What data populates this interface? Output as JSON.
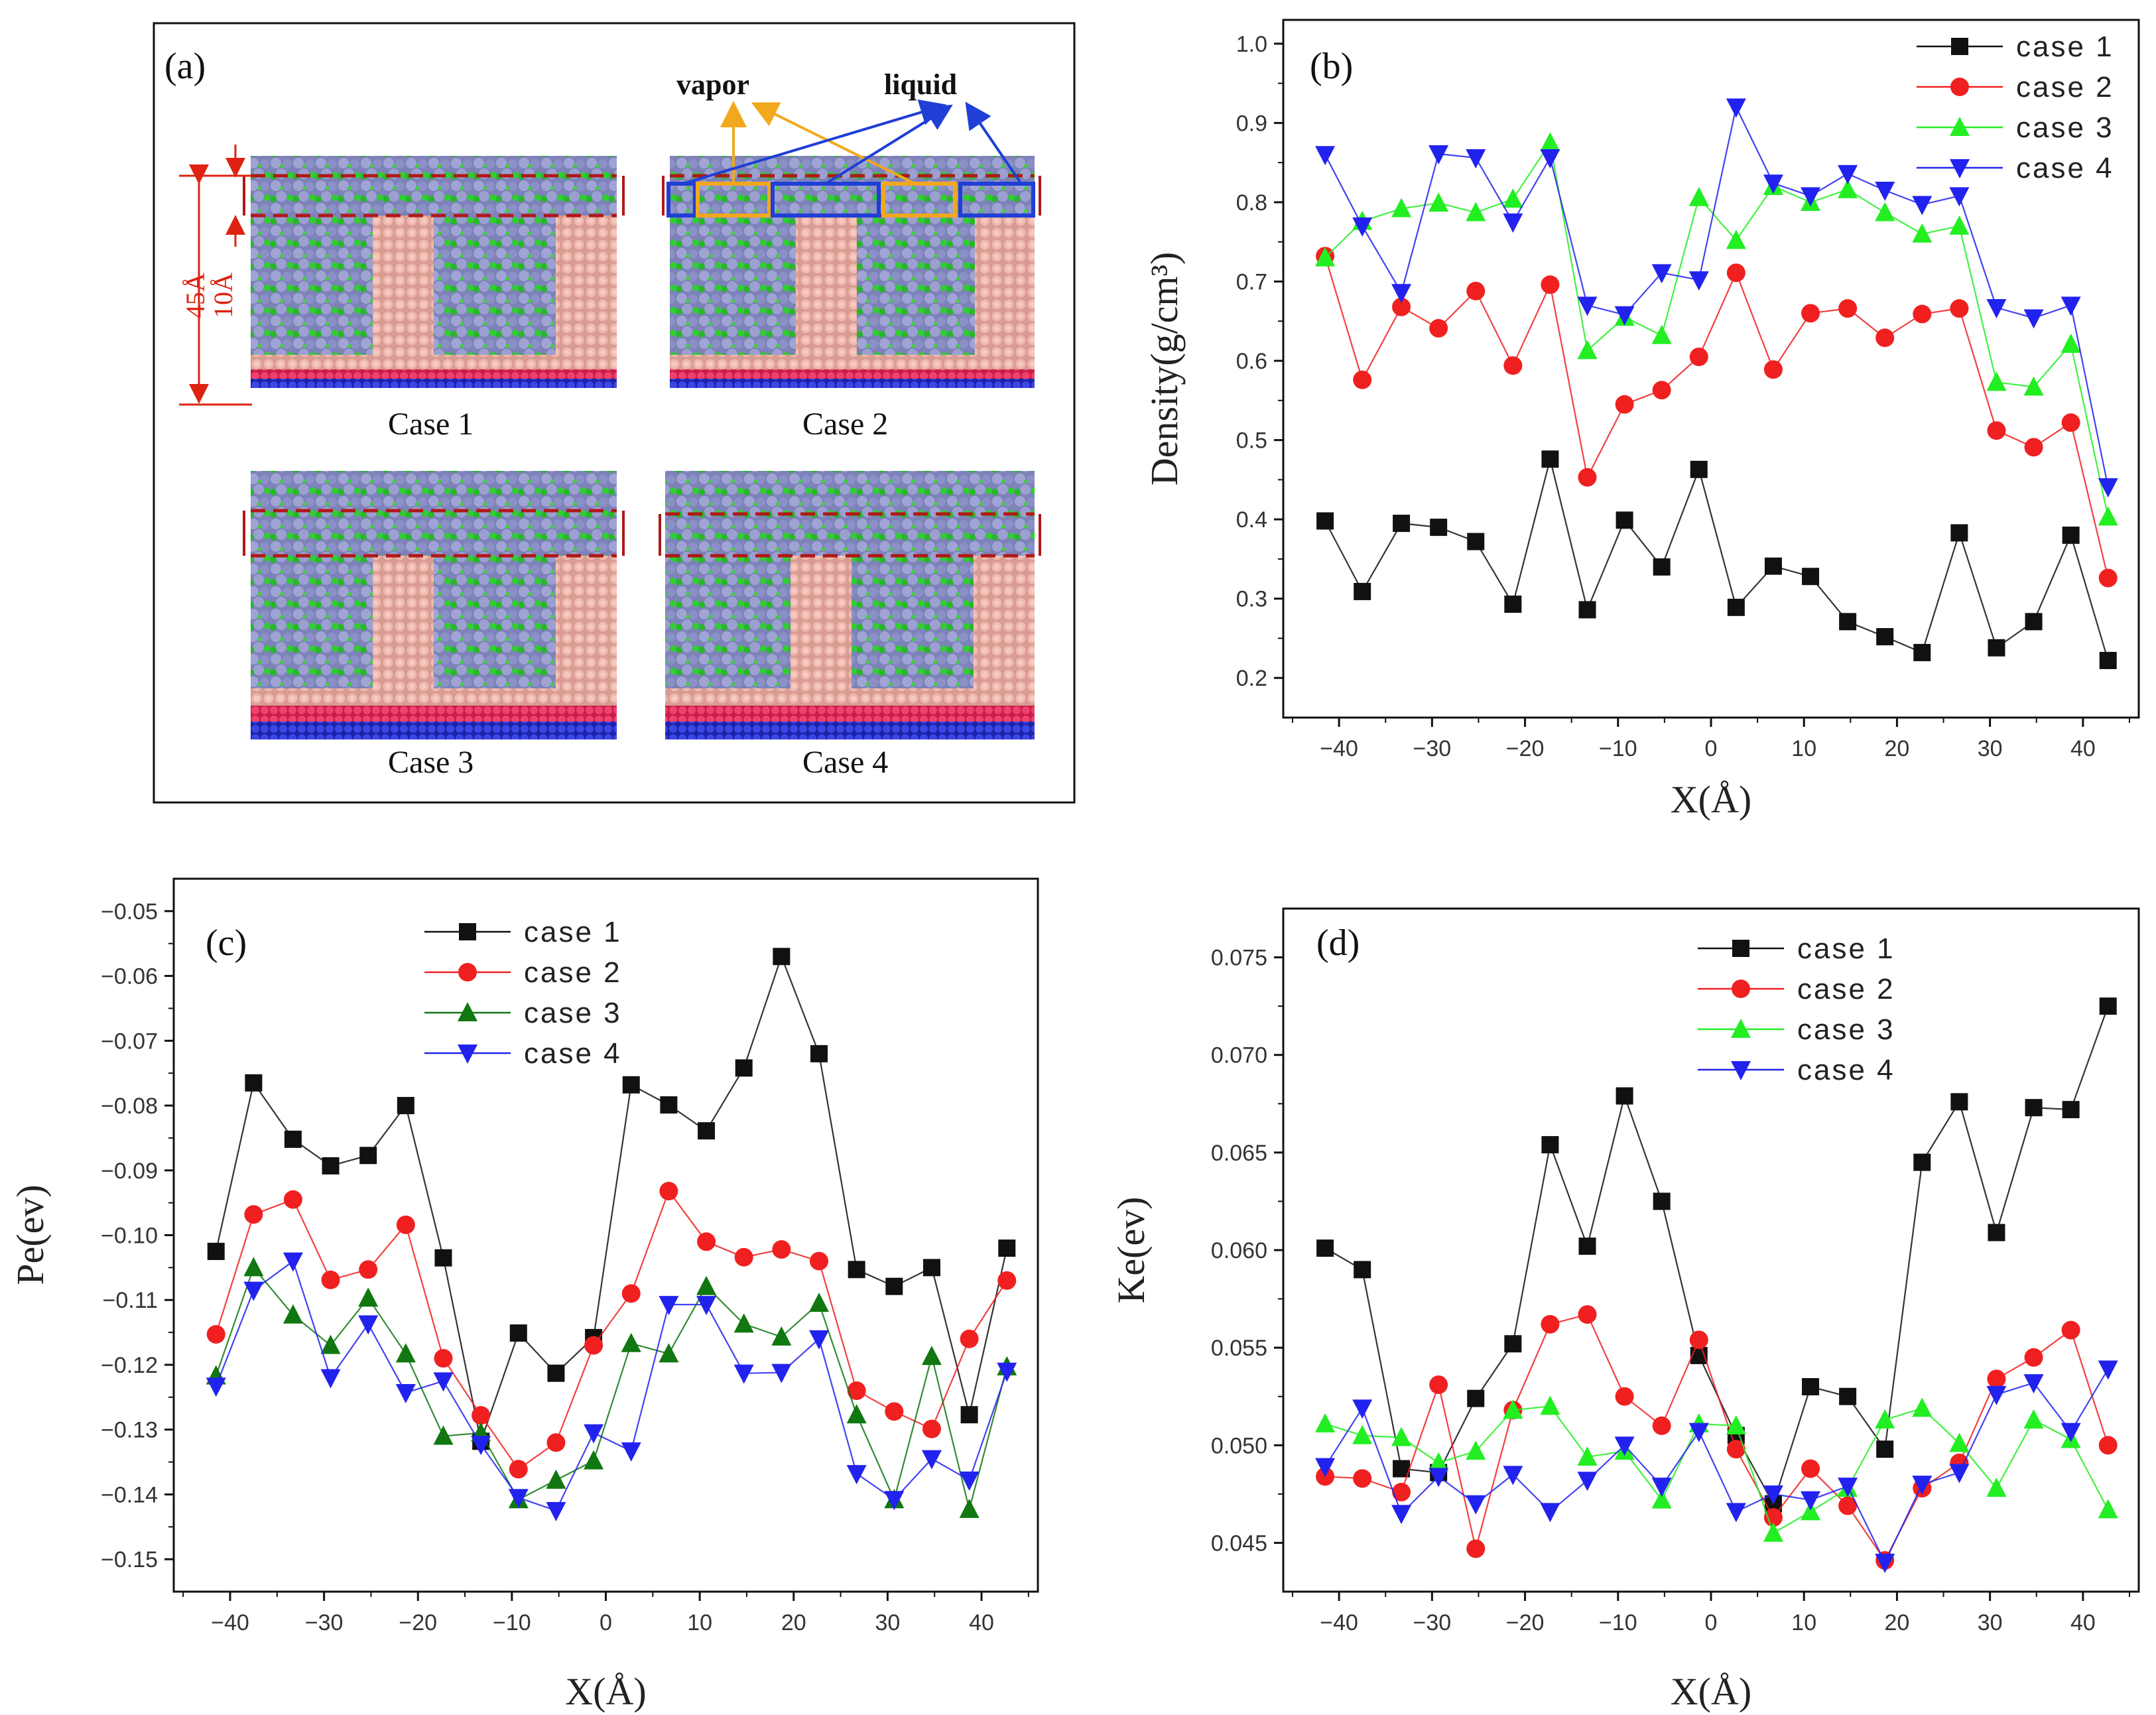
{
  "panel_a": {
    "label": "(a)",
    "cases": [
      "Case 1",
      "Case 2",
      "Case 3",
      "Case 4"
    ],
    "annotations": {
      "vapor": "vapor",
      "liquid": "liquid",
      "dim_45": "45Å",
      "dim_10": "10Å"
    },
    "colors": {
      "fluid_a": "#8f93c4",
      "fluid_b": "#2fbf2f",
      "wall": "#e7a9a0",
      "base_red": "#e0305a",
      "base_blue": "#2f3ad0",
      "dashed": "#b01818",
      "vapor_box": "#f2a81d",
      "liquid_box": "#1f3fd6"
    }
  },
  "chart_data": [
    {
      "type": "line",
      "panel": "(b)",
      "xlabel": "X(Å)",
      "ylabel": "Density(g/cm³)",
      "xlim": [
        -46,
        46
      ],
      "ylim": [
        0.15,
        1.03
      ],
      "xticks": [
        -40,
        -30,
        -20,
        -10,
        0,
        10,
        20,
        30,
        40
      ],
      "yticks": [
        0.2,
        0.3,
        0.4,
        0.5,
        0.6,
        0.7,
        0.8,
        0.9,
        1.0
      ],
      "tick_labels_x": [
        "−40",
        "−30",
        "−20",
        "−10",
        "0",
        "10",
        "20",
        "30",
        "40"
      ],
      "tick_labels_y": [
        "0.2",
        "0.3",
        "0.4",
        "0.5",
        "0.6",
        "0.7",
        "0.8",
        "0.9",
        "1.0"
      ],
      "legend_position": "top-right",
      "x": [
        -41.5,
        -37.5,
        -33.3,
        -29.3,
        -25.3,
        -21.3,
        -17.3,
        -13.3,
        -9.3,
        -5.3,
        -1.3,
        2.7,
        6.7,
        10.7,
        14.7,
        18.7,
        22.7,
        26.7,
        30.7,
        34.7,
        38.7,
        42.7
      ],
      "series": [
        {
          "name": "case 1",
          "color": "#111111",
          "marker": "square",
          "values": [
            0.398,
            0.309,
            0.395,
            0.39,
            0.372,
            0.293,
            0.476,
            0.286,
            0.399,
            0.34,
            0.463,
            0.289,
            0.341,
            0.328,
            0.271,
            0.252,
            0.232,
            0.383,
            0.238,
            0.271,
            0.38,
            0.222
          ]
        },
        {
          "name": "case 2",
          "color": "#f02020",
          "marker": "circle",
          "values": [
            0.732,
            0.576,
            0.668,
            0.641,
            0.688,
            0.594,
            0.696,
            0.453,
            0.545,
            0.563,
            0.605,
            0.711,
            0.589,
            0.66,
            0.666,
            0.629,
            0.659,
            0.666,
            0.512,
            0.491,
            0.522,
            0.326
          ]
        },
        {
          "name": "case 3",
          "color": "#22ee22",
          "marker": "triangle-up",
          "values": [
            0.73,
            0.776,
            0.792,
            0.799,
            0.787,
            0.804,
            0.875,
            0.613,
            0.655,
            0.632,
            0.806,
            0.752,
            0.82,
            0.8,
            0.816,
            0.787,
            0.76,
            0.77,
            0.573,
            0.567,
            0.621,
            0.403
          ]
        },
        {
          "name": "case 4",
          "color": "#2222ee",
          "marker": "triangle-down",
          "values": [
            0.86,
            0.77,
            0.686,
            0.861,
            0.856,
            0.775,
            0.856,
            0.67,
            0.658,
            0.711,
            0.702,
            0.92,
            0.824,
            0.808,
            0.836,
            0.815,
            0.797,
            0.808,
            0.667,
            0.654,
            0.67,
            0.441
          ]
        }
      ]
    },
    {
      "type": "line",
      "panel": "(c)",
      "xlabel": "X(Å)",
      "ylabel": "Pe(ev)",
      "xlim": [
        -46,
        46
      ],
      "ylim": [
        -0.155,
        -0.045
      ],
      "xticks": [
        -40,
        -30,
        -20,
        -10,
        0,
        10,
        20,
        30,
        40
      ],
      "yticks": [
        -0.15,
        -0.14,
        -0.13,
        -0.12,
        -0.11,
        -0.1,
        -0.09,
        -0.08,
        -0.07,
        -0.06,
        -0.05
      ],
      "tick_labels_x": [
        "−40",
        "−30",
        "−20",
        "−10",
        "0",
        "10",
        "20",
        "30",
        "40"
      ],
      "tick_labels_y": [
        "−0.15",
        "−0.14",
        "−0.13",
        "−0.12",
        "−0.11",
        "−0.10",
        "−0.09",
        "−0.08",
        "−0.07",
        "−0.06",
        "−0.05"
      ],
      "legend_position": "top-left",
      "x": [
        -41.5,
        -37.5,
        -33.3,
        -29.3,
        -25.3,
        -21.3,
        -17.3,
        -13.3,
        -9.3,
        -5.3,
        -1.3,
        2.7,
        6.7,
        10.7,
        14.7,
        18.7,
        22.7,
        26.7,
        30.7,
        34.7,
        38.7,
        42.7
      ],
      "series": [
        {
          "name": "case 1",
          "color": "#111111",
          "marker": "square",
          "values": [
            -0.1025,
            -0.0765,
            -0.0852,
            -0.0893,
            -0.0877,
            -0.08,
            -0.1035,
            -0.1318,
            -0.1151,
            -0.1213,
            -0.1158,
            -0.0768,
            -0.0799,
            -0.0839,
            -0.0742,
            -0.057,
            -0.072,
            -0.1053,
            -0.1079,
            -0.105,
            -0.1277,
            -0.102
          ]
        },
        {
          "name": "case 2",
          "color": "#f02020",
          "marker": "circle",
          "values": [
            -0.1153,
            -0.0968,
            -0.0945,
            -0.1069,
            -0.1053,
            -0.0984,
            -0.119,
            -0.1278,
            -0.1361,
            -0.132,
            -0.117,
            -0.109,
            -0.0932,
            -0.101,
            -0.1034,
            -0.1022,
            -0.104,
            -0.124,
            -0.1272,
            -0.1299,
            -0.116,
            -0.107
          ]
        },
        {
          "name": "case 3",
          "color": "#117711",
          "marker": "triangle-up",
          "values": [
            -0.1217,
            -0.105,
            -0.1123,
            -0.117,
            -0.1097,
            -0.1183,
            -0.131,
            -0.1305,
            -0.1408,
            -0.1378,
            -0.1348,
            -0.1167,
            -0.1183,
            -0.1079,
            -0.1137,
            -0.1157,
            -0.1105,
            -0.1277,
            -0.1408,
            -0.1187,
            -0.1423,
            -0.1203
          ]
        },
        {
          "name": "case 4",
          "color": "#2222ee",
          "marker": "triangle-down",
          "values": [
            -0.1233,
            -0.1085,
            -0.104,
            -0.122,
            -0.1137,
            -0.1243,
            -0.1225,
            -0.1323,
            -0.1405,
            -0.1425,
            -0.1305,
            -0.1333,
            -0.1107,
            -0.1107,
            -0.1213,
            -0.1212,
            -0.116,
            -0.1368,
            -0.1408,
            -0.1345,
            -0.1378,
            -0.121
          ]
        }
      ]
    },
    {
      "type": "line",
      "panel": "(d)",
      "xlabel": "X(Å)",
      "ylabel": "Ke(ev)",
      "xlim": [
        -46,
        46
      ],
      "ylim": [
        0.0425,
        0.0775
      ],
      "xticks": [
        -40,
        -30,
        -20,
        -10,
        0,
        10,
        20,
        30,
        40
      ],
      "yticks": [
        0.045,
        0.05,
        0.055,
        0.06,
        0.065,
        0.07,
        0.075
      ],
      "tick_labels_x": [
        "−40",
        "−30",
        "−20",
        "−10",
        "0",
        "10",
        "20",
        "30",
        "40"
      ],
      "tick_labels_y": [
        "0.045",
        "0.050",
        "0.055",
        "0.060",
        "0.065",
        "0.070",
        "0.075"
      ],
      "legend_position": "top-center",
      "x": [
        -41.5,
        -37.5,
        -33.3,
        -29.3,
        -25.3,
        -21.3,
        -17.3,
        -13.3,
        -9.3,
        -5.3,
        -1.3,
        2.7,
        6.7,
        10.7,
        14.7,
        18.7,
        22.7,
        26.7,
        30.7,
        34.7,
        38.7,
        42.7
      ],
      "series": [
        {
          "name": "case 1",
          "color": "#111111",
          "marker": "square",
          "values": [
            0.0601,
            0.059,
            0.0488,
            0.0486,
            0.0524,
            0.0552,
            0.0654,
            0.0602,
            0.0679,
            0.0625,
            0.0546,
            0.0505,
            0.047,
            0.053,
            0.0525,
            0.0498,
            0.0645,
            0.0676,
            0.0609,
            0.0673,
            0.0672,
            0.0725
          ]
        },
        {
          "name": "case 2",
          "color": "#f02020",
          "marker": "circle",
          "values": [
            0.0484,
            0.0483,
            0.0476,
            0.0531,
            0.0447,
            0.0518,
            0.0562,
            0.0567,
            0.0525,
            0.051,
            0.0554,
            0.0498,
            0.0463,
            0.0488,
            0.0469,
            0.0441,
            0.0478,
            0.0491,
            0.0534,
            0.0545,
            0.0559,
            0.05
          ]
        },
        {
          "name": "case 3",
          "color": "#22ee22",
          "marker": "triangle-up",
          "values": [
            0.0511,
            0.0505,
            0.0504,
            0.0491,
            0.0497,
            0.0518,
            0.052,
            0.0494,
            0.0497,
            0.0472,
            0.0511,
            0.051,
            0.0455,
            0.0466,
            0.0478,
            0.0513,
            0.0519,
            0.0501,
            0.0478,
            0.0513,
            0.0503,
            0.0467
          ]
        },
        {
          "name": "case 4",
          "color": "#2222ee",
          "marker": "triangle-down",
          "values": [
            0.0489,
            0.0519,
            0.0465,
            0.0484,
            0.047,
            0.0485,
            0.0466,
            0.0482,
            0.05,
            0.0479,
            0.0507,
            0.0466,
            0.0475,
            0.0472,
            0.0479,
            0.044,
            0.048,
            0.0486,
            0.0526,
            0.0532,
            0.0507,
            0.0539
          ]
        }
      ]
    }
  ]
}
